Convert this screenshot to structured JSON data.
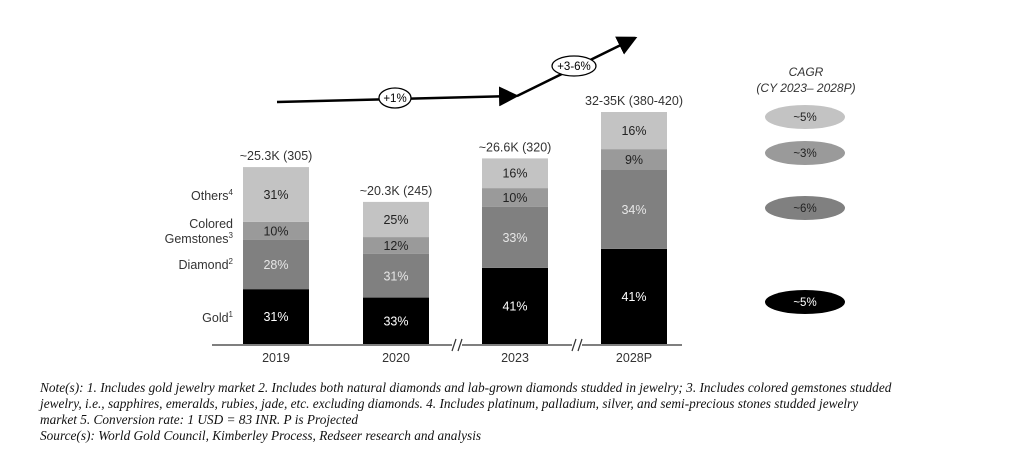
{
  "chart_data": {
    "type": "bar",
    "stacked": true,
    "categories": [
      "2019",
      "2020",
      "2023",
      "2028P"
    ],
    "totals_numeric": [
      305,
      245,
      320,
      400
    ],
    "total_labels": [
      "~25.3K (305)",
      "~20.3K (245)",
      "~26.6K (320)",
      "32-35K (380-420)"
    ],
    "series": [
      {
        "name": "Gold",
        "sup": "1",
        "color": "#000000",
        "text_color": "#ffffff",
        "values": [
          31,
          33,
          41,
          41
        ]
      },
      {
        "name": "Diamond",
        "sup": "2",
        "color": "#808080",
        "text_color": "#e6e6e6",
        "values": [
          28,
          31,
          33,
          34
        ]
      },
      {
        "name": "Colored Gemstones",
        "sup": "3",
        "color": "#9a9a9a",
        "text_color": "#222222",
        "values": [
          10,
          12,
          10,
          9
        ]
      },
      {
        "name": "Others",
        "sup": "4",
        "color": "#c3c3c3",
        "text_color": "#222222",
        "values": [
          31,
          25,
          16,
          16
        ]
      }
    ],
    "axis_breaks_after": [
      "2020",
      "2023"
    ],
    "trend_labels": [
      "+1%",
      "+3-6%"
    ],
    "cagr": {
      "title": "CAGR",
      "subtitle": "(CY 2023– 2028P)",
      "values": [
        "~5%",
        "~3%",
        "~6%",
        "~5%"
      ],
      "series_order": [
        "Others",
        "Colored Gemstones",
        "Diamond",
        "Gold"
      ]
    }
  },
  "legend_labels": {
    "others": "Others",
    "colored_1": "Colored",
    "colored_2": "Gemstones",
    "diamond": "Diamond",
    "gold": "Gold"
  },
  "notes": {
    "line1": "Note(s): 1. Includes gold jewelry market 2. Includes both natural diamonds and lab-grown diamonds studded in jewelry; 3. Includes colored gemstones studded",
    "line2": "jewelry, i.e., sapphires, emeralds, rubies, jade, etc. excluding diamonds. 4. Includes platinum, palladium, silver, and semi-precious stones studded jewelry",
    "line3": "market 5. Conversion rate: 1 USD = 83 INR. P is Projected",
    "line4": "Source(s): World Gold Council, Kimberley Process, Redseer research and analysis"
  }
}
